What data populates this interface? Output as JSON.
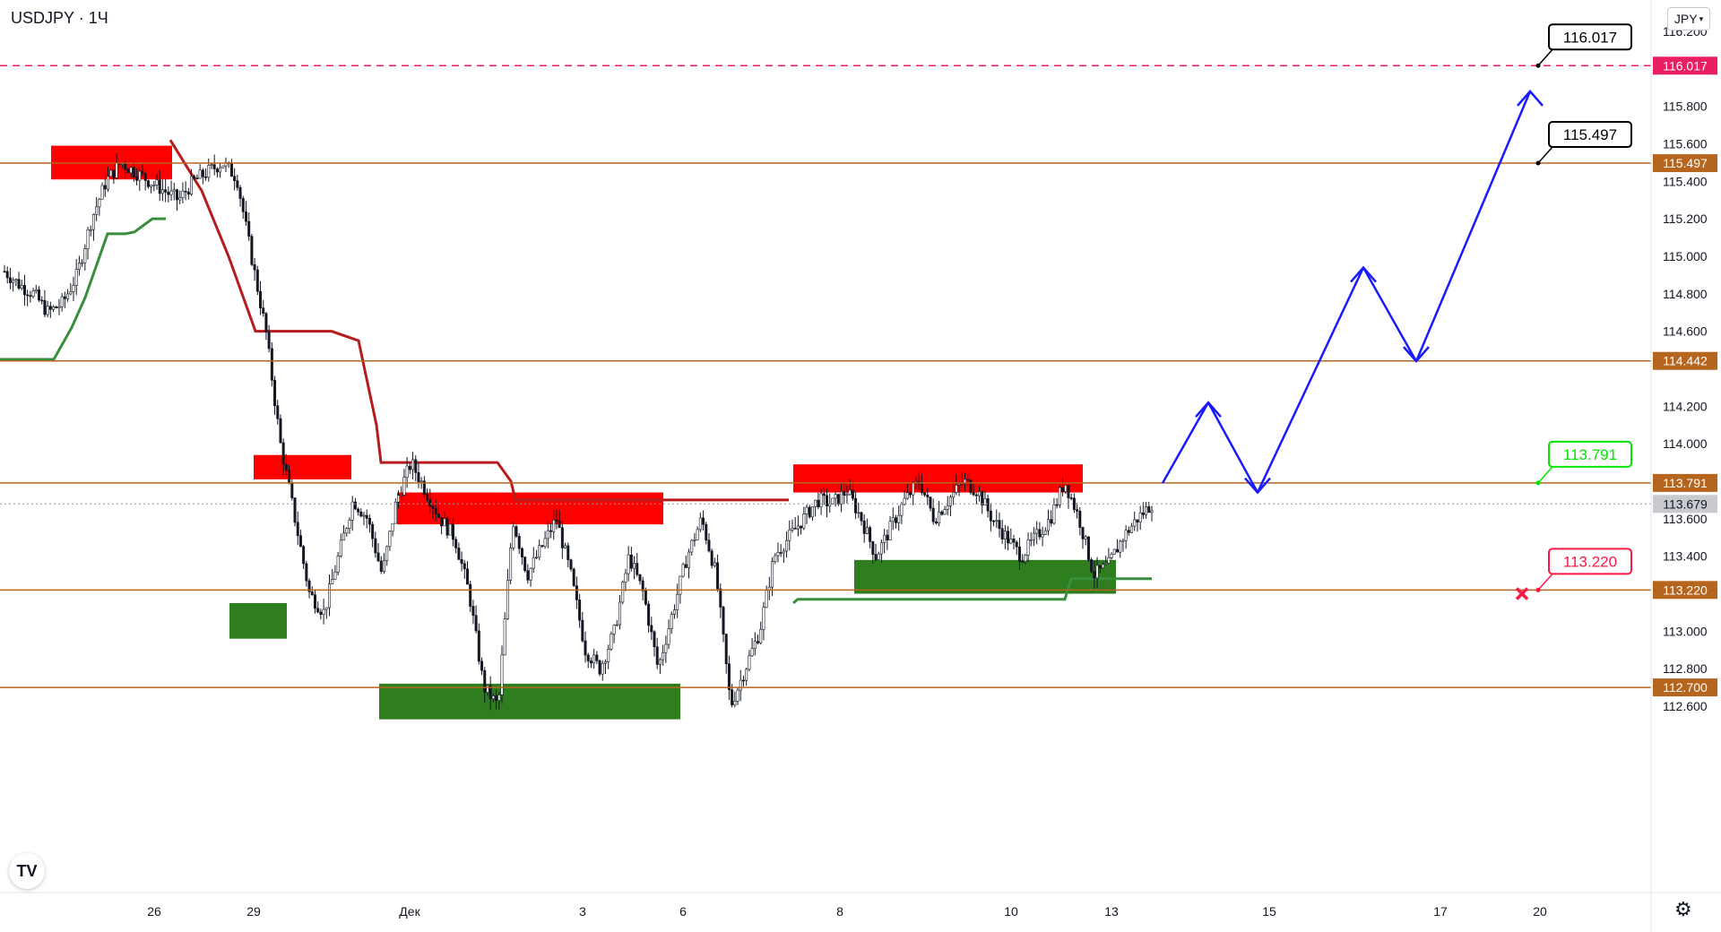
{
  "header": {
    "symbol": "USDJPY",
    "interval": "1Ч",
    "currency": "JPY"
  },
  "icons": {
    "logo": "tradingview-logo-icon",
    "settings": "gear-icon",
    "currency_dropdown": "chevron-down-icon",
    "stop": "x-mark-icon"
  },
  "colors": {
    "level_line": "#b5651d",
    "target_line": "#e91e63",
    "supply_zone": "#ff0000",
    "demand_zone": "#2e7d1e",
    "forecast_path": "#1a1aff",
    "trail_down": "#b71c1c",
    "trail_up": "#388e3c",
    "callout_top": "#000000",
    "callout_green": "#00e600",
    "callout_red": "#ff1744"
  },
  "chart_data": {
    "type": "candlestick",
    "symbol": "USDJPY",
    "timeframe": "1Ч",
    "ylim": [
      112.48,
      116.3
    ],
    "y_ticks": [
      "116.200",
      "115.800",
      "115.600",
      "115.400",
      "115.200",
      "115.000",
      "114.800",
      "114.600",
      "114.200",
      "114.000",
      "113.600",
      "113.400",
      "113.000",
      "112.800",
      "112.600"
    ],
    "x_ticks": [
      "26",
      "29",
      "Дек",
      "3",
      "6",
      "8",
      "10",
      "13",
      "15",
      "17",
      "20"
    ],
    "current_price": "113.679",
    "levels": [
      {
        "price": 116.017,
        "label": "116.017",
        "style": "dashed",
        "kind": "target"
      },
      {
        "price": 115.497,
        "label": "115.497",
        "style": "solid",
        "kind": "level"
      },
      {
        "price": 114.442,
        "label": "114.442",
        "style": "solid",
        "kind": "level"
      },
      {
        "price": 113.791,
        "label": "113.791",
        "style": "solid",
        "kind": "level"
      },
      {
        "price": 113.22,
        "label": "113.220",
        "style": "solid",
        "kind": "level"
      },
      {
        "price": 112.7,
        "label": "112.700",
        "style": "solid",
        "kind": "level"
      }
    ],
    "callouts": [
      {
        "label": "116.017",
        "price": 116.017,
        "kind": "target"
      },
      {
        "label": "115.497",
        "price": 115.497,
        "kind": "target"
      },
      {
        "label": "113.791",
        "price": 113.791,
        "kind": "entry"
      },
      {
        "label": "113.220",
        "price": 113.22,
        "kind": "stop"
      }
    ],
    "forecast_path": [
      113.79,
      114.22,
      113.74,
      114.94,
      114.44,
      115.88
    ],
    "trail_down_levels": [
      115.62,
      115.0,
      114.6,
      113.9,
      113.7
    ],
    "trail_up_levels": [
      114.45,
      115.12,
      113.15,
      113.28
    ],
    "candle_path": [
      114.92,
      114.85,
      114.8,
      114.7,
      114.75,
      114.9,
      115.2,
      115.4,
      115.5,
      115.45,
      115.4,
      115.35,
      115.3,
      115.4,
      115.45,
      115.5,
      115.42,
      115.0,
      114.6,
      114.0,
      113.6,
      113.2,
      113.1,
      113.4,
      113.7,
      113.6,
      113.3,
      113.7,
      113.9,
      113.75,
      113.6,
      113.5,
      113.2,
      112.7,
      112.6,
      113.6,
      113.3,
      113.45,
      113.6,
      113.3,
      112.9,
      112.8,
      113.0,
      113.4,
      113.2,
      112.8,
      113.1,
      113.4,
      113.6,
      113.3,
      112.6,
      112.8,
      113.0,
      113.4,
      113.5,
      113.6,
      113.7,
      113.68,
      113.75,
      113.6,
      113.4,
      113.55,
      113.7,
      113.8,
      113.6,
      113.7,
      113.8,
      113.75,
      113.6,
      113.5,
      113.4,
      113.5,
      113.6,
      113.8,
      113.6,
      113.3,
      113.35,
      113.5,
      113.6,
      113.68
    ]
  }
}
